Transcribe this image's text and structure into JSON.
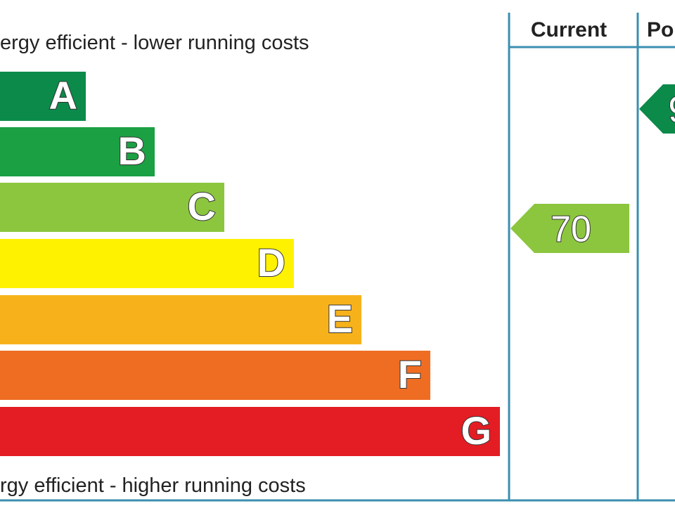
{
  "header": {
    "top_note": "ergy efficient - lower running costs",
    "current": "Current",
    "potential": "Po"
  },
  "bands": [
    {
      "letter": "A"
    },
    {
      "letter": "B"
    },
    {
      "letter": "C"
    },
    {
      "letter": "D"
    },
    {
      "letter": "E"
    },
    {
      "letter": "F"
    },
    {
      "letter": "G"
    }
  ],
  "footer": {
    "bottom_note": "rgy efficient - higher running costs"
  },
  "current": {
    "value": "70"
  },
  "potential": {
    "value": "9"
  }
}
